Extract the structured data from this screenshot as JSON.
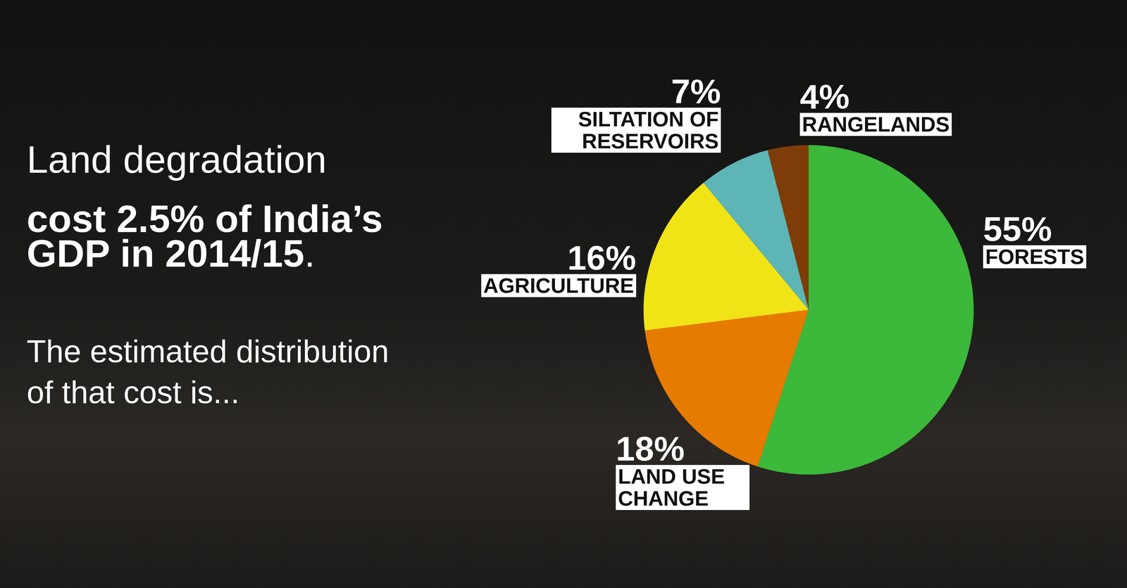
{
  "chart_data": {
    "type": "pie",
    "title": "Land degradation cost 2.5% of India’s GDP in 2014/15.",
    "subtitle": "The estimated distribution of that cost is...",
    "categories": [
      "FORESTS",
      "LAND USE CHANGE",
      "AGRICULTURE",
      "SILTATION OF RESERVOIRS",
      "RANGELANDS"
    ],
    "values": [
      55,
      18,
      16,
      7,
      4
    ],
    "value_labels": [
      "55%",
      "18%",
      "16%",
      "7%",
      "4%"
    ],
    "colors": [
      "#3cb83a",
      "#e67b02",
      "#f1e416",
      "#5db5b5",
      "#7d3c08"
    ],
    "data_labels": true
  }
}
